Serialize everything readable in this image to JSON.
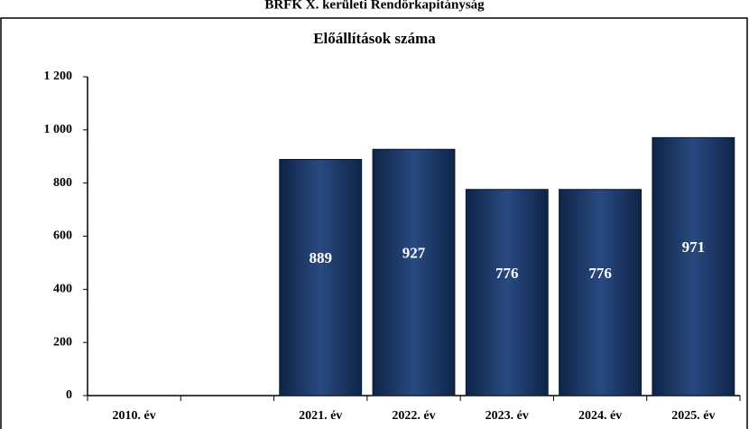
{
  "chart_data": {
    "type": "bar",
    "title": "BRFK X. kerületi Rendőrkapitányság",
    "subtitle": "Előállítások száma",
    "categories": [
      "2010. év",
      null,
      "2021. év",
      "2022. év",
      "2023. év",
      "2024. év",
      "2025. év"
    ],
    "values": [
      null,
      null,
      889,
      927,
      776,
      776,
      971
    ],
    "color": "#1f3864",
    "ylim": [
      0,
      1200
    ],
    "yticks": [
      0,
      200,
      400,
      600,
      800,
      {
        "value": 1000,
        "label": "1 000"
      },
      {
        "value": 1200,
        "label": "1 200"
      }
    ],
    "grid": false
  }
}
